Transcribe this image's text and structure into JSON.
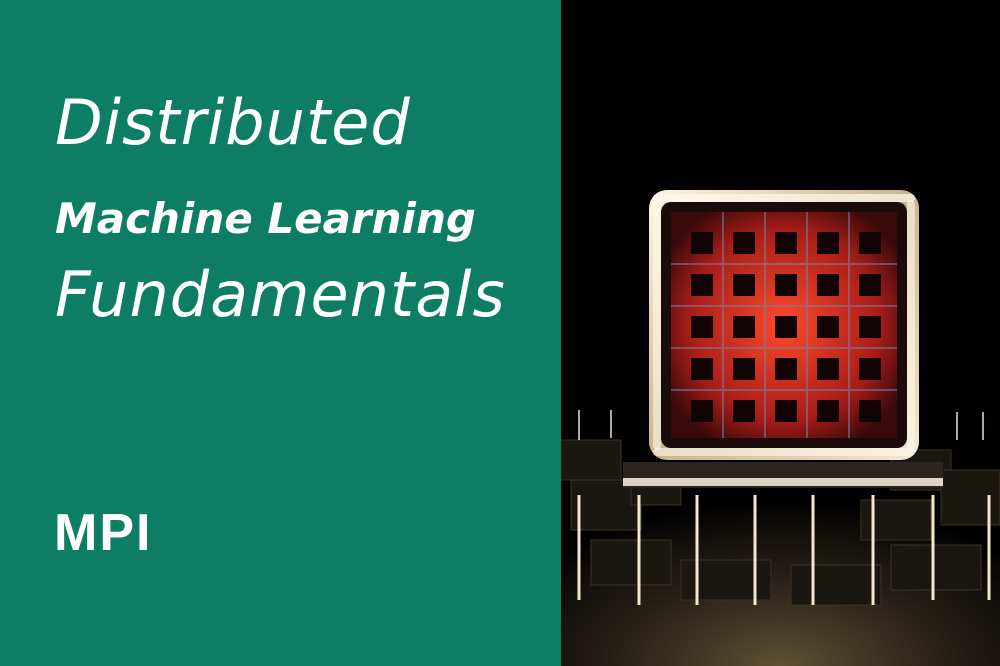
{
  "banner": {
    "title_line_1": "Distributed",
    "title_line_2": "Machine Learning",
    "title_line_3": "Fundamentals",
    "topic": "MPI"
  },
  "colors": {
    "panel_green": "#0d7e64",
    "text": "#ffffff",
    "image_background": "#000000",
    "chip_frame": "#e8dcc4",
    "chip_core": "#c8241c"
  },
  "image": {
    "icon": "glowing-chip-cube-illustration"
  }
}
